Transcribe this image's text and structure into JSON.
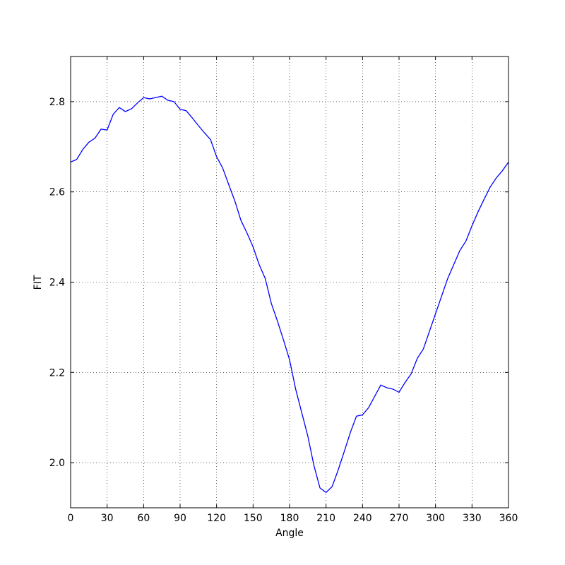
{
  "chart_data": {
    "type": "line",
    "xlabel": "Angle",
    "ylabel": "FIT",
    "x": [
      0,
      5,
      10,
      15,
      20,
      25,
      30,
      35,
      40,
      45,
      50,
      55,
      60,
      65,
      70,
      75,
      80,
      85,
      90,
      95,
      100,
      105,
      110,
      115,
      120,
      125,
      130,
      135,
      140,
      145,
      150,
      155,
      160,
      165,
      170,
      175,
      180,
      185,
      190,
      195,
      200,
      205,
      210,
      215,
      220,
      225,
      230,
      235,
      240,
      245,
      250,
      255,
      260,
      265,
      270,
      275,
      280,
      285,
      290,
      295,
      300,
      305,
      310,
      315,
      320,
      325,
      330,
      335,
      340,
      345,
      350,
      355,
      360
    ],
    "series": [
      {
        "color": "#0000ff",
        "values": [
          2.666,
          2.672,
          2.694,
          2.71,
          2.719,
          2.739,
          2.737,
          2.772,
          2.787,
          2.778,
          2.784,
          2.797,
          2.809,
          2.806,
          2.809,
          2.812,
          2.803,
          2.8,
          2.783,
          2.78,
          2.764,
          2.747,
          2.731,
          2.716,
          2.678,
          2.653,
          2.616,
          2.58,
          2.537,
          2.509,
          2.478,
          2.439,
          2.408,
          2.353,
          2.314,
          2.272,
          2.228,
          2.163,
          2.111,
          2.059,
          1.994,
          1.944,
          1.934,
          1.947,
          1.984,
          2.025,
          2.067,
          2.103,
          2.106,
          2.122,
          2.147,
          2.172,
          2.166,
          2.163,
          2.156,
          2.178,
          2.197,
          2.231,
          2.252,
          2.291,
          2.33,
          2.369,
          2.408,
          2.439,
          2.47,
          2.491,
          2.525,
          2.556,
          2.584,
          2.611,
          2.631,
          2.647,
          2.666
        ]
      }
    ],
    "xlim": [
      0,
      360
    ],
    "xticks": [
      0,
      30,
      60,
      90,
      120,
      150,
      180,
      210,
      240,
      270,
      300,
      330,
      360
    ],
    "ylim": [
      1.9,
      2.9
    ],
    "yticks": [
      {
        "value": 2,
        "label": "2.0"
      },
      2.2,
      2.4,
      2.6,
      2.8
    ],
    "grid": true
  }
}
